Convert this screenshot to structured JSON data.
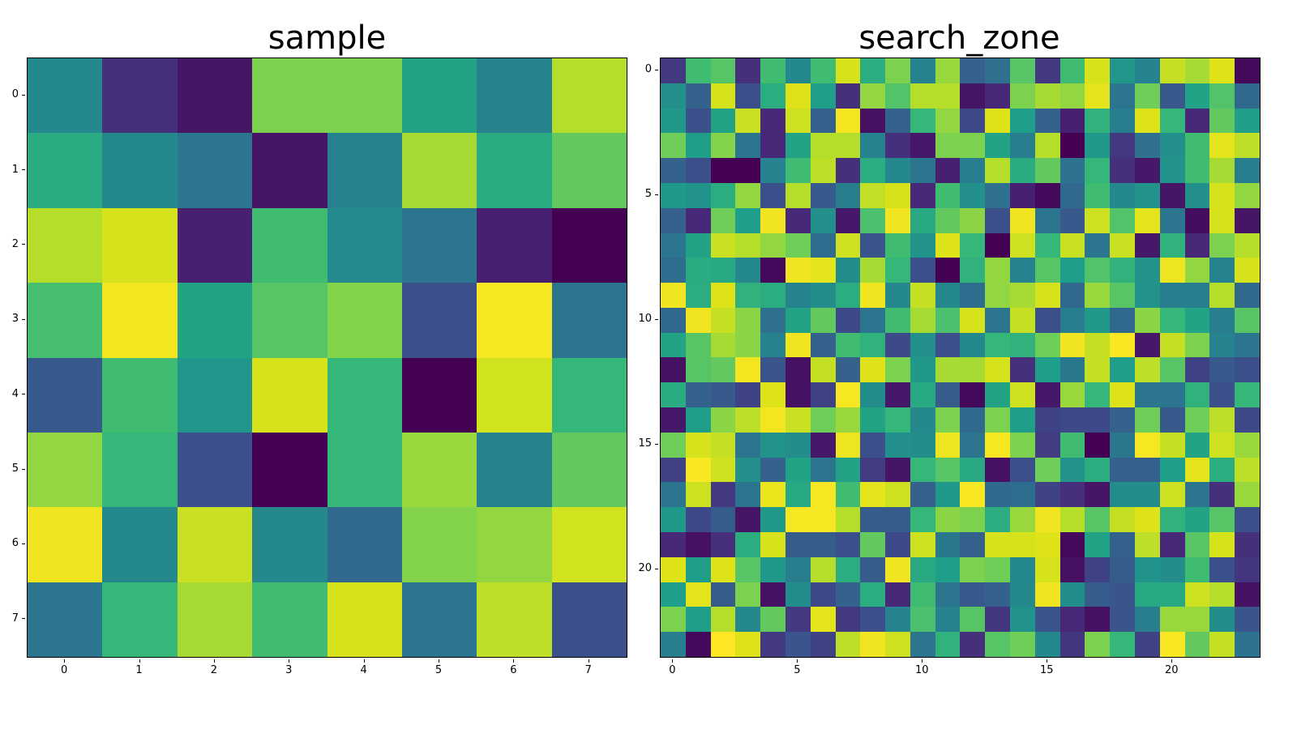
{
  "figure": {
    "left_title": "sample",
    "right_title": "search_zone",
    "colormap": [
      "#440154",
      "#482878",
      "#3e4989",
      "#31688e",
      "#26828e",
      "#1f9e89",
      "#35b779",
      "#6ece58",
      "#b5de2b",
      "#dde318",
      "#fde725"
    ]
  },
  "chart_data": [
    {
      "type": "heatmap",
      "title": "sample",
      "xlabel": "",
      "ylabel": "",
      "rows": 8,
      "cols": 8,
      "x_ticks": [
        "0",
        "1",
        "2",
        "3",
        "4",
        "5",
        "6",
        "7"
      ],
      "y_ticks": [
        "0",
        "1",
        "2",
        "3",
        "4",
        "5",
        "6",
        "7"
      ],
      "colormap": "viridis",
      "values": [
        [
          0.42,
          0.12,
          0.05,
          0.72,
          0.72,
          0.52,
          0.4,
          0.8
        ],
        [
          0.55,
          0.42,
          0.35,
          0.05,
          0.4,
          0.78,
          0.55,
          0.68
        ],
        [
          0.8,
          0.88,
          0.08,
          0.62,
          0.43,
          0.35,
          0.08,
          0.0
        ],
        [
          0.63,
          0.97,
          0.52,
          0.66,
          0.73,
          0.22,
          0.98,
          0.35
        ],
        [
          0.25,
          0.62,
          0.47,
          0.88,
          0.6,
          0.0,
          0.87,
          0.6
        ],
        [
          0.75,
          0.6,
          0.22,
          0.0,
          0.6,
          0.76,
          0.4,
          0.68
        ],
        [
          0.96,
          0.42,
          0.85,
          0.42,
          0.3,
          0.73,
          0.75,
          0.87
        ],
        [
          0.35,
          0.6,
          0.78,
          0.62,
          0.88,
          0.35,
          0.82,
          0.22
        ]
      ]
    },
    {
      "type": "heatmap",
      "title": "search_zone",
      "xlabel": "",
      "ylabel": "",
      "rows": 24,
      "cols": 24,
      "x_ticks": [
        "0",
        "5",
        "10",
        "15",
        "20"
      ],
      "y_ticks": [
        "0",
        "5",
        "10",
        "15",
        "20"
      ],
      "colormap": "viridis",
      "values": [
        [
          0.15,
          0.62,
          0.66,
          0.12,
          0.62,
          0.42,
          0.62,
          0.88,
          0.56,
          0.72,
          0.4,
          0.76,
          0.28,
          0.33,
          0.66,
          0.15,
          0.62,
          0.88,
          0.47,
          0.4,
          0.84,
          0.78,
          0.9,
          0.02
        ],
        [
          0.45,
          0.28,
          0.88,
          0.22,
          0.56,
          0.9,
          0.5,
          0.12,
          0.75,
          0.65,
          0.8,
          0.8,
          0.05,
          0.1,
          0.72,
          0.78,
          0.75,
          0.92,
          0.35,
          0.7,
          0.25,
          0.52,
          0.65,
          0.3
        ],
        [
          0.48,
          0.22,
          0.52,
          0.85,
          0.1,
          0.86,
          0.28,
          0.97,
          0.04,
          0.28,
          0.6,
          0.75,
          0.2,
          0.9,
          0.5,
          0.28,
          0.08,
          0.58,
          0.38,
          0.9,
          0.6,
          0.1,
          0.68,
          0.5
        ],
        [
          0.7,
          0.5,
          0.73,
          0.35,
          0.1,
          0.52,
          0.8,
          0.8,
          0.4,
          0.12,
          0.06,
          0.72,
          0.72,
          0.52,
          0.38,
          0.8,
          0.0,
          0.48,
          0.15,
          0.33,
          0.45,
          0.62,
          0.92,
          0.82
        ],
        [
          0.28,
          0.22,
          0.0,
          0.0,
          0.4,
          0.62,
          0.82,
          0.12,
          0.56,
          0.42,
          0.35,
          0.08,
          0.38,
          0.8,
          0.55,
          0.68,
          0.34,
          0.6,
          0.12,
          0.06,
          0.46,
          0.62,
          0.78,
          0.38
        ],
        [
          0.48,
          0.46,
          0.56,
          0.75,
          0.22,
          0.8,
          0.25,
          0.38,
          0.83,
          0.88,
          0.1,
          0.62,
          0.45,
          0.33,
          0.08,
          0.02,
          0.3,
          0.62,
          0.42,
          0.46,
          0.05,
          0.45,
          0.88,
          0.75
        ],
        [
          0.28,
          0.1,
          0.7,
          0.5,
          0.96,
          0.1,
          0.45,
          0.06,
          0.64,
          0.96,
          0.54,
          0.68,
          0.74,
          0.22,
          0.96,
          0.35,
          0.25,
          0.86,
          0.65,
          0.92,
          0.35,
          0.03,
          0.88,
          0.05
        ],
        [
          0.35,
          0.52,
          0.85,
          0.8,
          0.75,
          0.7,
          0.32,
          0.86,
          0.24,
          0.62,
          0.46,
          0.9,
          0.6,
          0.0,
          0.86,
          0.6,
          0.85,
          0.35,
          0.85,
          0.06,
          0.58,
          0.1,
          0.72,
          0.8
        ],
        [
          0.32,
          0.55,
          0.54,
          0.42,
          0.02,
          0.96,
          0.92,
          0.44,
          0.78,
          0.6,
          0.22,
          0.0,
          0.58,
          0.75,
          0.4,
          0.66,
          0.5,
          0.65,
          0.58,
          0.46,
          0.95,
          0.75,
          0.4,
          0.88
        ],
        [
          0.96,
          0.56,
          0.9,
          0.58,
          0.56,
          0.4,
          0.44,
          0.56,
          0.96,
          0.42,
          0.84,
          0.42,
          0.32,
          0.75,
          0.78,
          0.88,
          0.3,
          0.76,
          0.66,
          0.46,
          0.38,
          0.38,
          0.8,
          0.3
        ],
        [
          0.3,
          0.96,
          0.84,
          0.74,
          0.33,
          0.52,
          0.68,
          0.2,
          0.35,
          0.62,
          0.78,
          0.64,
          0.88,
          0.35,
          0.84,
          0.22,
          0.38,
          0.48,
          0.3,
          0.74,
          0.6,
          0.52,
          0.38,
          0.66
        ],
        [
          0.52,
          0.66,
          0.78,
          0.74,
          0.4,
          0.96,
          0.28,
          0.62,
          0.58,
          0.2,
          0.45,
          0.22,
          0.42,
          0.6,
          0.58,
          0.7,
          0.96,
          0.84,
          0.99,
          0.06,
          0.84,
          0.72,
          0.4,
          0.35
        ],
        [
          0.04,
          0.66,
          0.68,
          0.97,
          0.24,
          0.04,
          0.84,
          0.28,
          0.9,
          0.72,
          0.48,
          0.78,
          0.78,
          0.88,
          0.12,
          0.5,
          0.36,
          0.84,
          0.5,
          0.82,
          0.66,
          0.18,
          0.25,
          0.22
        ],
        [
          0.55,
          0.28,
          0.25,
          0.18,
          0.9,
          0.04,
          0.18,
          0.98,
          0.44,
          0.06,
          0.54,
          0.26,
          0.02,
          0.52,
          0.86,
          0.06,
          0.76,
          0.6,
          0.9,
          0.35,
          0.35,
          0.58,
          0.22,
          0.6
        ],
        [
          0.06,
          0.5,
          0.74,
          0.82,
          0.97,
          0.85,
          0.7,
          0.76,
          0.52,
          0.6,
          0.42,
          0.72,
          0.3,
          0.72,
          0.5,
          0.18,
          0.2,
          0.2,
          0.28,
          0.7,
          0.25,
          0.7,
          0.82,
          0.2
        ],
        [
          0.7,
          0.88,
          0.84,
          0.35,
          0.46,
          0.44,
          0.06,
          0.95,
          0.22,
          0.45,
          0.44,
          0.95,
          0.35,
          0.98,
          0.72,
          0.16,
          0.62,
          0.0,
          0.36,
          0.98,
          0.84,
          0.52,
          0.86,
          0.76
        ],
        [
          0.18,
          0.99,
          0.86,
          0.45,
          0.28,
          0.52,
          0.35,
          0.52,
          0.16,
          0.05,
          0.6,
          0.66,
          0.54,
          0.04,
          0.22,
          0.7,
          0.46,
          0.56,
          0.27,
          0.27,
          0.5,
          0.92,
          0.56,
          0.82
        ],
        [
          0.35,
          0.86,
          0.15,
          0.35,
          0.94,
          0.54,
          0.98,
          0.62,
          0.92,
          0.86,
          0.28,
          0.48,
          0.99,
          0.3,
          0.32,
          0.18,
          0.12,
          0.05,
          0.44,
          0.44,
          0.86,
          0.35,
          0.12,
          0.76
        ],
        [
          0.48,
          0.2,
          0.26,
          0.05,
          0.48,
          0.98,
          0.98,
          0.8,
          0.26,
          0.26,
          0.6,
          0.74,
          0.72,
          0.56,
          0.76,
          0.96,
          0.8,
          0.66,
          0.84,
          0.9,
          0.58,
          0.52,
          0.66,
          0.22
        ],
        [
          0.1,
          0.04,
          0.12,
          0.56,
          0.88,
          0.26,
          0.26,
          0.22,
          0.68,
          0.2,
          0.86,
          0.36,
          0.28,
          0.88,
          0.88,
          0.9,
          0.02,
          0.52,
          0.28,
          0.82,
          0.1,
          0.66,
          0.88,
          0.12
        ],
        [
          0.9,
          0.5,
          0.9,
          0.66,
          0.48,
          0.38,
          0.8,
          0.56,
          0.26,
          0.96,
          0.54,
          0.5,
          0.72,
          0.7,
          0.42,
          0.88,
          0.04,
          0.18,
          0.26,
          0.46,
          0.44,
          0.62,
          0.22,
          0.14
        ],
        [
          0.5,
          0.92,
          0.26,
          0.72,
          0.04,
          0.44,
          0.2,
          0.28,
          0.56,
          0.1,
          0.62,
          0.35,
          0.25,
          0.28,
          0.42,
          0.96,
          0.44,
          0.26,
          0.24,
          0.54,
          0.54,
          0.86,
          0.8,
          0.04
        ],
        [
          0.72,
          0.5,
          0.8,
          0.42,
          0.68,
          0.15,
          0.92,
          0.15,
          0.22,
          0.4,
          0.64,
          0.4,
          0.66,
          0.14,
          0.46,
          0.24,
          0.1,
          0.04,
          0.24,
          0.38,
          0.76,
          0.76,
          0.44,
          0.24
        ],
        [
          0.38,
          0.02,
          1.0,
          0.9,
          0.15,
          0.24,
          0.18,
          0.82,
          0.96,
          0.86,
          0.35,
          0.58,
          0.12,
          0.66,
          0.7,
          0.42,
          0.14,
          0.72,
          0.6,
          0.18,
          0.99,
          0.68,
          0.84,
          0.34
        ]
      ]
    }
  ]
}
